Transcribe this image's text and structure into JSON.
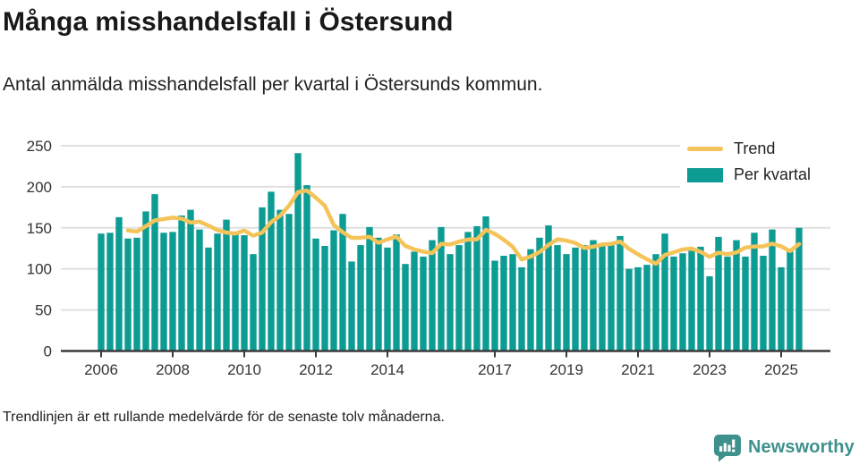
{
  "header": {
    "title": "Många misshandelsfall i Östersund",
    "subtitle": "Antal anmälda misshandelsfall per kvartal i Östersunds kommun."
  },
  "legend": {
    "trend_label": "Trend",
    "bars_label": "Per kvartal"
  },
  "footer": {
    "note": "Trendlinjen är ett rullande medelvärde för de senaste tolv månaderna.",
    "brand": "Newsworthy"
  },
  "colors": {
    "bar": "#0d9c94",
    "trend": "#f4c45a",
    "grid": "#e0e0e0",
    "axis": "#3a3a3a",
    "tick_text": "#333333",
    "brand": "#3e918c"
  },
  "chart_data": {
    "type": "bar",
    "title": "Många misshandelsfall i Östersund",
    "subtitle": "Antal anmälda misshandelsfall per kvartal i Östersunds kommun.",
    "xlabel": "",
    "ylabel": "",
    "ylim": [
      0,
      250
    ],
    "yticks": [
      0,
      50,
      100,
      150,
      200,
      250
    ],
    "xticks": [
      "2006",
      "2008",
      "2010",
      "2012",
      "2014",
      "2017",
      "2019",
      "2021",
      "2023",
      "2025"
    ],
    "grid": true,
    "legend_position": "top-right",
    "x": [
      "2006 K1",
      "2006 K2",
      "2006 K3",
      "2006 K4",
      "2007 K1",
      "2007 K2",
      "2007 K3",
      "2007 K4",
      "2008 K1",
      "2008 K2",
      "2008 K3",
      "2008 K4",
      "2009 K1",
      "2009 K2",
      "2009 K3",
      "2009 K4",
      "2010 K1",
      "2010 K2",
      "2010 K3",
      "2010 K4",
      "2011 K1",
      "2011 K2",
      "2011 K3",
      "2011 K4",
      "2012 K1",
      "2012 K2",
      "2012 K3",
      "2012 K4",
      "2013 K1",
      "2013 K2",
      "2013 K3",
      "2013 K4",
      "2014 K1",
      "2014 K2",
      "2014 K3",
      "2014 K4",
      "2015 K1",
      "2015 K2",
      "2015 K3",
      "2015 K4",
      "2016 K1",
      "2016 K2",
      "2016 K3",
      "2016 K4",
      "2017 K1",
      "2017 K2",
      "2017 K3",
      "2017 K4",
      "2018 K1",
      "2018 K2",
      "2018 K3",
      "2018 K4",
      "2019 K1",
      "2019 K2",
      "2019 K3",
      "2019 K4",
      "2020 K1",
      "2020 K2",
      "2020 K3",
      "2020 K4",
      "2021 K1",
      "2021 K2",
      "2021 K3",
      "2021 K4",
      "2022 K1",
      "2022 K2",
      "2022 K3",
      "2022 K4",
      "2023 K1",
      "2023 K2",
      "2023 K3",
      "2023 K4",
      "2024 K1",
      "2024 K2",
      "2024 K3",
      "2024 K4",
      "2025 K1",
      "2025 K2",
      "2025 K3"
    ],
    "series": [
      {
        "name": "Per kvartal",
        "type": "bar",
        "values": [
          143,
          144,
          163,
          137,
          138,
          170,
          191,
          144,
          145,
          165,
          172,
          148,
          126,
          143,
          160,
          143,
          141,
          118,
          175,
          194,
          172,
          167,
          241,
          202,
          137,
          128,
          147,
          167,
          109,
          129,
          151,
          138,
          126,
          142,
          106,
          121,
          115,
          135,
          151,
          118,
          129,
          145,
          152,
          164,
          110,
          116,
          118,
          102,
          124,
          138,
          153,
          129,
          118,
          126,
          129,
          135,
          129,
          129,
          140,
          100,
          102,
          105,
          118,
          143,
          115,
          119,
          122,
          127,
          91,
          139,
          115,
          135,
          115,
          144,
          116,
          148,
          102,
          121,
          150
        ]
      },
      {
        "name": "Trend",
        "type": "line",
        "values": [
          null,
          null,
          null,
          146.75,
          145.5,
          152,
          159,
          160.75,
          162.5,
          161.25,
          156.5,
          157.5,
          152.75,
          147.25,
          144.25,
          143,
          146.75,
          140.5,
          144.25,
          157,
          164.75,
          177,
          193.5,
          195.5,
          186.75,
          177,
          153.5,
          144.75,
          137.75,
          138,
          139,
          131.75,
          136,
          139.25,
          128,
          123.75,
          121,
          119.25,
          130.5,
          129.75,
          133.25,
          135.75,
          136,
          147.5,
          142.75,
          135.5,
          127,
          111.5,
          115,
          120.5,
          129.25,
          136,
          134.5,
          131.5,
          125.5,
          127,
          129.75,
          130.5,
          133.25,
          124.5,
          117.75,
          111.75,
          106.25,
          117,
          120.25,
          123.75,
          124.75,
          120.75,
          114.75,
          119.75,
          118,
          120,
          126,
          127.25,
          127.5,
          130.75,
          127.5,
          121.75,
          130.25
        ]
      }
    ]
  }
}
